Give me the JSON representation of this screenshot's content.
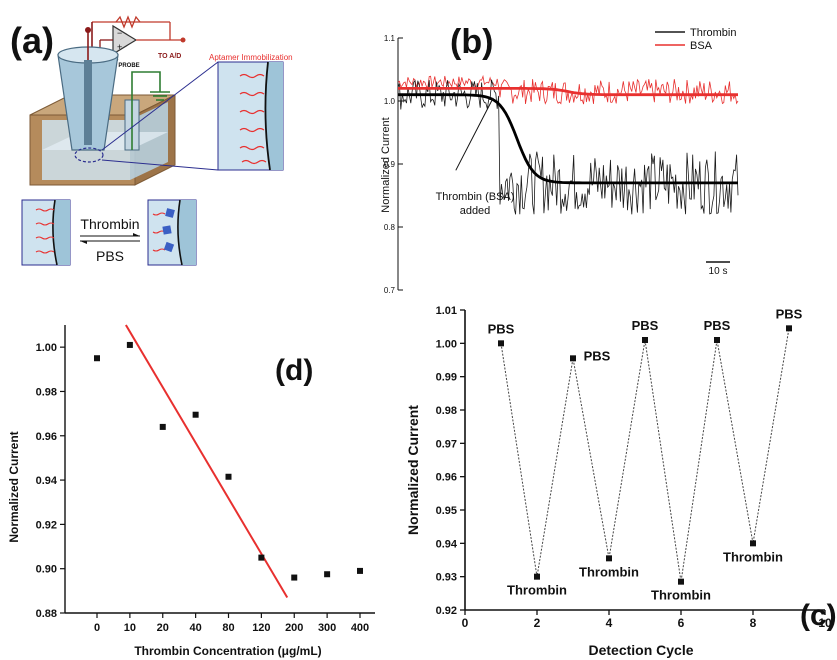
{
  "panel_labels": {
    "a": "(a)",
    "b": "(b)",
    "c": "(c)",
    "d": "(d)"
  },
  "schematic": {
    "amp_output_label": "TO A/D",
    "probe_label": "V",
    "probe_subscript": "PROBE",
    "zoom_title": "Aptamer Immobilization",
    "forward_label": "Thrombin",
    "reverse_label": "PBS",
    "colors": {
      "aptamer": "#e8302f",
      "electrode": "#9ec4d8",
      "thrombin_block": "#3a5fc4",
      "zoom_line": "#2b2e8f"
    }
  },
  "chart_data": [
    {
      "id": "b",
      "type": "line",
      "ylabel": "Normalized Current",
      "xlabel": "",
      "ylim": [
        0.7,
        1.1
      ],
      "yticks": [
        "0.7",
        "0.8",
        "0.9",
        "1.0",
        "1.1"
      ],
      "x_range": [
        0,
        100
      ],
      "scale_bar_label": "10 s",
      "annotation": [
        "Thrombin (BSA)",
        "added"
      ],
      "legend": {
        "position": "top-right"
      },
      "series": [
        {
          "name": "Thrombin",
          "color": "#1a1a1a",
          "kind": "noisy",
          "baseline_before": 1.01,
          "baseline_after": 0.87,
          "transition_x": 30,
          "noise": 0.05
        },
        {
          "name": "BSA",
          "color": "#e8302f",
          "kind": "noisy",
          "baseline_before": 1.03,
          "baseline_after": 1.015,
          "transition_x": 30,
          "noise": 0.02
        }
      ],
      "fits": [
        {
          "series": "Thrombin",
          "color": "#000000",
          "before": 1.01,
          "after": 0.87,
          "midpoint_x": 35
        },
        {
          "series": "BSA",
          "color": "#e8302f",
          "before": 1.02,
          "after": 1.01,
          "midpoint_x": 50
        }
      ]
    },
    {
      "id": "c",
      "type": "line",
      "xlabel": "Detection Cycle",
      "ylabel": "Normalized Current",
      "xlim": [
        0,
        10
      ],
      "ylim": [
        0.92,
        1.01
      ],
      "xticks": [
        "0",
        "2",
        "4",
        "6",
        "8",
        "10"
      ],
      "yticks": [
        "0.92",
        "0.93",
        "0.94",
        "0.95",
        "0.96",
        "0.97",
        "0.98",
        "0.99",
        "1.00",
        "1.01"
      ],
      "points": [
        {
          "x": 1,
          "y": 1.0,
          "label": "PBS"
        },
        {
          "x": 2,
          "y": 0.93,
          "label": "Thrombin"
        },
        {
          "x": 3,
          "y": 0.9955,
          "label": "PBS"
        },
        {
          "x": 4,
          "y": 0.9355,
          "label": "Thrombin"
        },
        {
          "x": 5,
          "y": 1.001,
          "label": "PBS"
        },
        {
          "x": 6,
          "y": 0.9285,
          "label": "Thrombin"
        },
        {
          "x": 7,
          "y": 1.001,
          "label": "PBS"
        },
        {
          "x": 8,
          "y": 0.94,
          "label": "Thrombin"
        },
        {
          "x": 9,
          "y": 1.0045,
          "label": "PBS"
        }
      ]
    },
    {
      "id": "d",
      "type": "scatter",
      "xlabel": "Thrombin Concentration (μg/mL)",
      "ylabel": "Normalized Current",
      "categories": [
        "0",
        "10",
        "20",
        "40",
        "80",
        "120",
        "200",
        "300",
        "400"
      ],
      "values": [
        0.995,
        1.001,
        0.964,
        0.9695,
        0.9415,
        0.905,
        0.896,
        0.8975,
        0.899
      ],
      "ylim": [
        0.88,
        1.01
      ],
      "yticks": [
        "0.88",
        "0.90",
        "0.92",
        "0.94",
        "0.96",
        "0.98",
        "1.00"
      ],
      "fit_line": {
        "color": "#e8302f",
        "start": {
          "category": "10",
          "y": 1.01
        },
        "end": {
          "category": "200",
          "y": 0.887
        }
      }
    }
  ]
}
